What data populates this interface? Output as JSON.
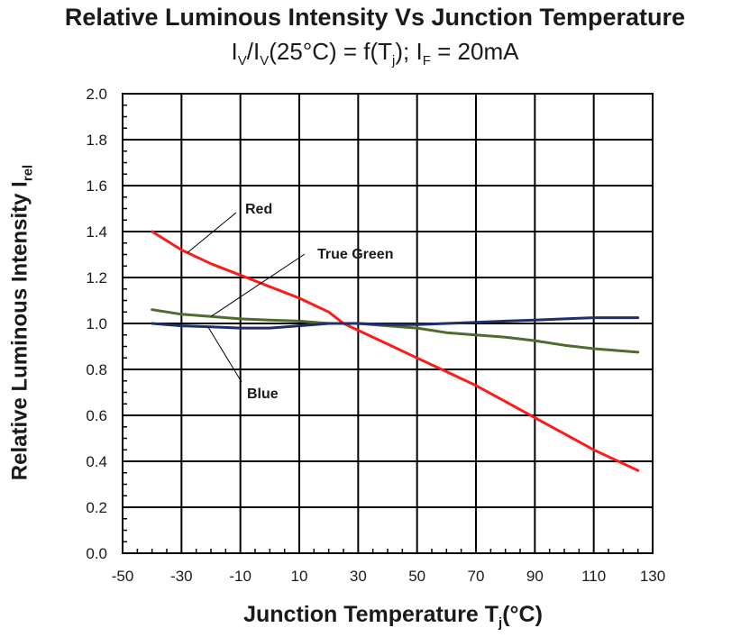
{
  "chart_data": {
    "type": "line",
    "title": "Relative Luminous Intensity Vs Junction Temperature",
    "subtitle": {
      "p1": "I",
      "s1": "V",
      "p2": "/I",
      "s2": "V",
      "p3": "(25°C) = f(T",
      "s3": "j",
      "p4": "); I",
      "s4": "F",
      "p5": " = 20mA"
    },
    "xlabel": {
      "main": "Junction Temperature T",
      "sub": "j",
      "tail": "(°C)"
    },
    "ylabel": {
      "main": "Relative Luminous Intensity I",
      "sub": "rel"
    },
    "xlim": [
      -50,
      130
    ],
    "ylim": [
      0.0,
      2.0
    ],
    "xticks": [
      "-50",
      "-30",
      "-10",
      "10",
      "30",
      "50",
      "70",
      "90",
      "110",
      "130"
    ],
    "yticks": [
      "0.0",
      "0.2",
      "0.4",
      "0.6",
      "0.8",
      "1.0",
      "1.2",
      "1.4",
      "1.6",
      "1.8",
      "2.0"
    ],
    "grid": true,
    "series": [
      {
        "name": "Red",
        "color": "#ff1a1a",
        "x": [
          -40,
          -30,
          -20,
          -10,
          0,
          10,
          20,
          25,
          30,
          40,
          50,
          60,
          70,
          80,
          90,
          100,
          110,
          125
        ],
        "y": [
          1.4,
          1.32,
          1.26,
          1.21,
          1.16,
          1.11,
          1.05,
          1.0,
          0.97,
          0.91,
          0.85,
          0.79,
          0.73,
          0.66,
          0.59,
          0.52,
          0.45,
          0.36
        ]
      },
      {
        "name": "True Green",
        "color": "#4f6b2e",
        "x": [
          -40,
          -30,
          -20,
          -10,
          0,
          10,
          20,
          30,
          40,
          50,
          60,
          70,
          80,
          90,
          100,
          110,
          125
        ],
        "y": [
          1.06,
          1.04,
          1.03,
          1.02,
          1.015,
          1.01,
          1.0,
          1.0,
          0.99,
          0.98,
          0.96,
          0.95,
          0.94,
          0.925,
          0.905,
          0.89,
          0.875
        ]
      },
      {
        "name": "Blue",
        "color": "#1f2f6b",
        "x": [
          -40,
          -30,
          -20,
          -10,
          0,
          10,
          20,
          30,
          40,
          50,
          60,
          70,
          80,
          90,
          100,
          110,
          125
        ],
        "y": [
          1.0,
          0.99,
          0.985,
          0.98,
          0.98,
          0.99,
          1.0,
          1.0,
          0.995,
          0.995,
          1.0,
          1.005,
          1.01,
          1.015,
          1.02,
          1.025,
          1.025
        ]
      }
    ],
    "annotations": [
      {
        "text": "Red",
        "series": "Red",
        "at_x": -28
      },
      {
        "text": "True Green",
        "series": "True Green",
        "at_x": -20
      },
      {
        "text": "Blue",
        "series": "Blue",
        "at_x": -21
      }
    ]
  }
}
